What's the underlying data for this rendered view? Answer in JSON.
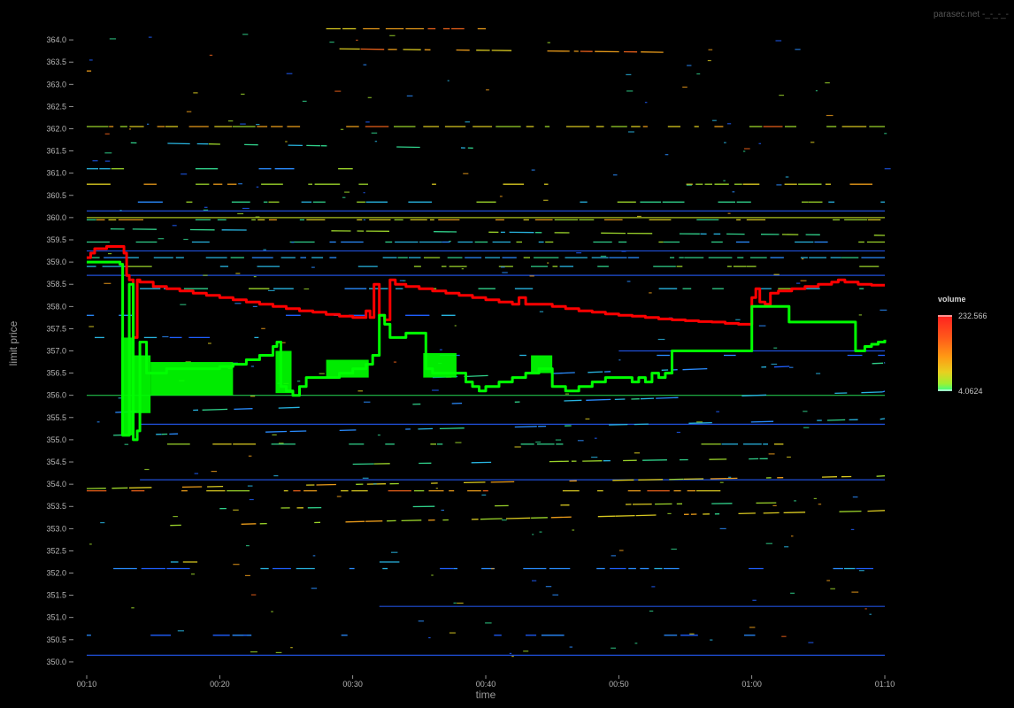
{
  "watermark": "parasec.net -_-_-_-",
  "chart_data": {
    "type": "line",
    "xlabel": "time",
    "ylabel": "limit price",
    "x_ticks": [
      "00:10",
      "00:20",
      "00:30",
      "00:40",
      "00:50",
      "01:00",
      "01:10"
    ],
    "x_range_minutes": [
      10,
      70
    ],
    "ylim": [
      349.7,
      364.3
    ],
    "y_ticks": [
      "350.0",
      "350.5",
      "351.0",
      "351.5",
      "352.0",
      "352.5",
      "353.0",
      "353.5",
      "354.0",
      "354.5",
      "355.0",
      "355.5",
      "356.0",
      "356.5",
      "357.0",
      "357.5",
      "358.0",
      "358.5",
      "359.0",
      "359.5",
      "360.0",
      "360.5",
      "361.0",
      "361.5",
      "362.0",
      "362.5",
      "363.0",
      "363.5",
      "364.0"
    ],
    "legend": {
      "title": "volume",
      "max_label": "232.566",
      "min_label": "4.0624",
      "placement": "right",
      "colors": [
        "#ff2020",
        "#ff5a1a",
        "#ff9a14",
        "#e8d020",
        "#a0f030",
        "#30ff90"
      ]
    },
    "grid": false,
    "series": [
      {
        "color": "#ff0000",
        "points": [
          [
            10.0,
            359.1
          ],
          [
            10.3,
            359.2
          ],
          [
            10.6,
            359.3
          ],
          [
            11.0,
            359.3
          ],
          [
            11.5,
            359.35
          ],
          [
            12.0,
            359.35
          ],
          [
            12.5,
            359.35
          ],
          [
            12.8,
            359.2
          ],
          [
            13.0,
            358.7
          ],
          [
            13.2,
            358.6
          ],
          [
            13.5,
            357.3
          ],
          [
            13.8,
            358.6
          ],
          [
            14.0,
            358.55
          ],
          [
            15.0,
            358.45
          ],
          [
            16.0,
            358.4
          ],
          [
            17.0,
            358.35
          ],
          [
            18.0,
            358.3
          ],
          [
            19.0,
            358.25
          ],
          [
            20.0,
            358.2
          ],
          [
            21.0,
            358.15
          ],
          [
            22.0,
            358.1
          ],
          [
            23.0,
            358.05
          ],
          [
            24.0,
            358.0
          ],
          [
            25.0,
            357.95
          ],
          [
            26.0,
            357.9
          ],
          [
            27.0,
            357.87
          ],
          [
            28.0,
            357.82
          ],
          [
            29.0,
            357.78
          ],
          [
            30.0,
            357.75
          ],
          [
            30.8,
            357.75
          ],
          [
            31.0,
            357.9
          ],
          [
            31.3,
            357.75
          ],
          [
            31.6,
            358.5
          ],
          [
            32.0,
            357.8
          ],
          [
            32.4,
            357.7
          ],
          [
            32.8,
            358.6
          ],
          [
            33.2,
            358.5
          ],
          [
            34.0,
            358.45
          ],
          [
            35.0,
            358.4
          ],
          [
            36.0,
            358.35
          ],
          [
            37.0,
            358.3
          ],
          [
            38.0,
            358.25
          ],
          [
            39.0,
            358.2
          ],
          [
            40.0,
            358.15
          ],
          [
            41.0,
            358.1
          ],
          [
            42.0,
            358.05
          ],
          [
            42.5,
            358.2
          ],
          [
            43.0,
            358.05
          ],
          [
            44.0,
            358.05
          ],
          [
            45.0,
            358.0
          ],
          [
            46.0,
            357.95
          ],
          [
            47.0,
            357.9
          ],
          [
            48.0,
            357.87
          ],
          [
            49.0,
            357.83
          ],
          [
            50.0,
            357.8
          ],
          [
            51.0,
            357.78
          ],
          [
            52.0,
            357.75
          ],
          [
            53.0,
            357.72
          ],
          [
            54.0,
            357.7
          ],
          [
            55.0,
            357.68
          ],
          [
            56.0,
            357.66
          ],
          [
            57.0,
            357.65
          ],
          [
            58.0,
            357.62
          ],
          [
            59.0,
            357.6
          ],
          [
            59.8,
            357.6
          ],
          [
            60.0,
            358.2
          ],
          [
            60.3,
            358.4
          ],
          [
            60.6,
            358.1
          ],
          [
            61.0,
            358.05
          ],
          [
            61.4,
            358.3
          ],
          [
            62.0,
            358.35
          ],
          [
            63.0,
            358.4
          ],
          [
            64.0,
            358.45
          ],
          [
            65.0,
            358.5
          ],
          [
            66.0,
            358.55
          ],
          [
            66.5,
            358.6
          ],
          [
            67.0,
            358.55
          ],
          [
            68.0,
            358.5
          ],
          [
            69.0,
            358.48
          ],
          [
            70.0,
            358.48
          ]
        ]
      },
      {
        "color": "#00ff00",
        "points": [
          [
            10.0,
            359.0
          ],
          [
            11.0,
            359.0
          ],
          [
            12.0,
            359.0
          ],
          [
            12.5,
            358.95
          ],
          [
            12.7,
            355.1
          ],
          [
            13.0,
            355.1
          ],
          [
            13.2,
            358.5
          ],
          [
            13.5,
            355.0
          ],
          [
            13.8,
            355.2
          ],
          [
            14.0,
            357.2
          ],
          [
            14.5,
            356.5
          ],
          [
            15.0,
            356.5
          ],
          [
            16.0,
            356.6
          ],
          [
            17.0,
            356.6
          ],
          [
            18.0,
            356.6
          ],
          [
            19.0,
            356.6
          ],
          [
            20.0,
            356.65
          ],
          [
            21.0,
            356.7
          ],
          [
            22.0,
            356.8
          ],
          [
            23.0,
            356.9
          ],
          [
            24.0,
            357.1
          ],
          [
            24.3,
            357.2
          ],
          [
            24.6,
            356.2
          ],
          [
            25.0,
            356.1
          ],
          [
            25.5,
            356.0
          ],
          [
            26.0,
            356.2
          ],
          [
            26.5,
            356.4
          ],
          [
            27.0,
            356.4
          ],
          [
            28.0,
            356.4
          ],
          [
            29.0,
            356.5
          ],
          [
            30.0,
            356.6
          ],
          [
            31.0,
            356.7
          ],
          [
            31.5,
            356.9
          ],
          [
            32.0,
            357.8
          ],
          [
            32.4,
            357.6
          ],
          [
            32.8,
            357.3
          ],
          [
            33.5,
            357.3
          ],
          [
            34.0,
            357.4
          ],
          [
            35.0,
            357.4
          ],
          [
            35.3,
            357.4
          ],
          [
            35.5,
            356.6
          ],
          [
            36.0,
            356.5
          ],
          [
            37.0,
            356.5
          ],
          [
            38.0,
            356.5
          ],
          [
            38.5,
            356.3
          ],
          [
            39.0,
            356.2
          ],
          [
            39.5,
            356.1
          ],
          [
            40.0,
            356.2
          ],
          [
            41.0,
            356.3
          ],
          [
            42.0,
            356.4
          ],
          [
            43.0,
            356.5
          ],
          [
            44.0,
            356.6
          ],
          [
            44.5,
            356.6
          ],
          [
            45.0,
            356.2
          ],
          [
            46.0,
            356.1
          ],
          [
            47.0,
            356.2
          ],
          [
            48.0,
            356.3
          ],
          [
            49.0,
            356.4
          ],
          [
            50.0,
            356.4
          ],
          [
            51.0,
            356.3
          ],
          [
            51.5,
            356.4
          ],
          [
            52.0,
            356.3
          ],
          [
            52.5,
            356.5
          ],
          [
            53.0,
            356.4
          ],
          [
            53.5,
            356.5
          ],
          [
            54.0,
            357.0
          ],
          [
            55.0,
            357.0
          ],
          [
            56.0,
            357.0
          ],
          [
            57.0,
            357.0
          ],
          [
            58.0,
            357.0
          ],
          [
            59.0,
            357.0
          ],
          [
            59.8,
            357.0
          ],
          [
            60.0,
            358.0
          ],
          [
            61.0,
            358.0
          ],
          [
            62.0,
            358.0
          ],
          [
            62.5,
            358.0
          ],
          [
            62.8,
            357.65
          ],
          [
            64.0,
            357.65
          ],
          [
            65.0,
            357.65
          ],
          [
            66.0,
            357.65
          ],
          [
            67.0,
            357.65
          ],
          [
            67.5,
            357.65
          ],
          [
            67.8,
            357.0
          ],
          [
            68.5,
            357.1
          ],
          [
            69.0,
            357.15
          ],
          [
            69.5,
            357.2
          ],
          [
            70.0,
            357.25
          ]
        ]
      }
    ]
  }
}
